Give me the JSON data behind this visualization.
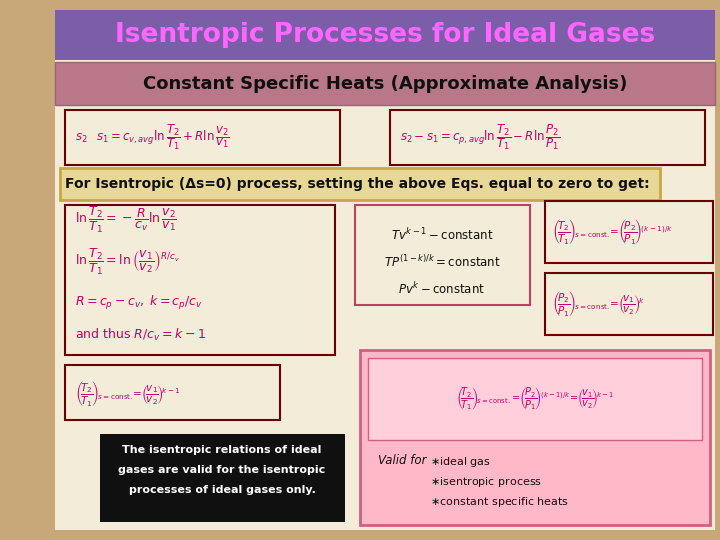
{
  "title": "Isentropic Processes for Ideal Gases",
  "title_bg": "#7B5EA7",
  "title_color": "#FF66FF",
  "subtitle": "Constant Specific Heats (Approximate Analysis)",
  "subtitle_bg": "#B87888",
  "subtitle_color": "#1A0A0A",
  "content_bg": "#F2ECD8",
  "outer_bg": "#C8A878",
  "isentropic_label": "For Isentropic (Δs=0) process, setting the above Eqs. equal to zero to get:",
  "isentropic_bg": "#E8D898",
  "isentropic_border": "#C8A840",
  "eq_color": "#C0006A",
  "dark_eq_color": "#882255",
  "box_border_dark": "#6B0000",
  "box_border_pink": "#C04060",
  "mid_box_border": "#C04060",
  "black_box_bg": "#101010",
  "pink_area_bg": "#FFB8C8",
  "pink_area_border": "#D06080",
  "text_dark": "#101010",
  "text_black": "#000000"
}
